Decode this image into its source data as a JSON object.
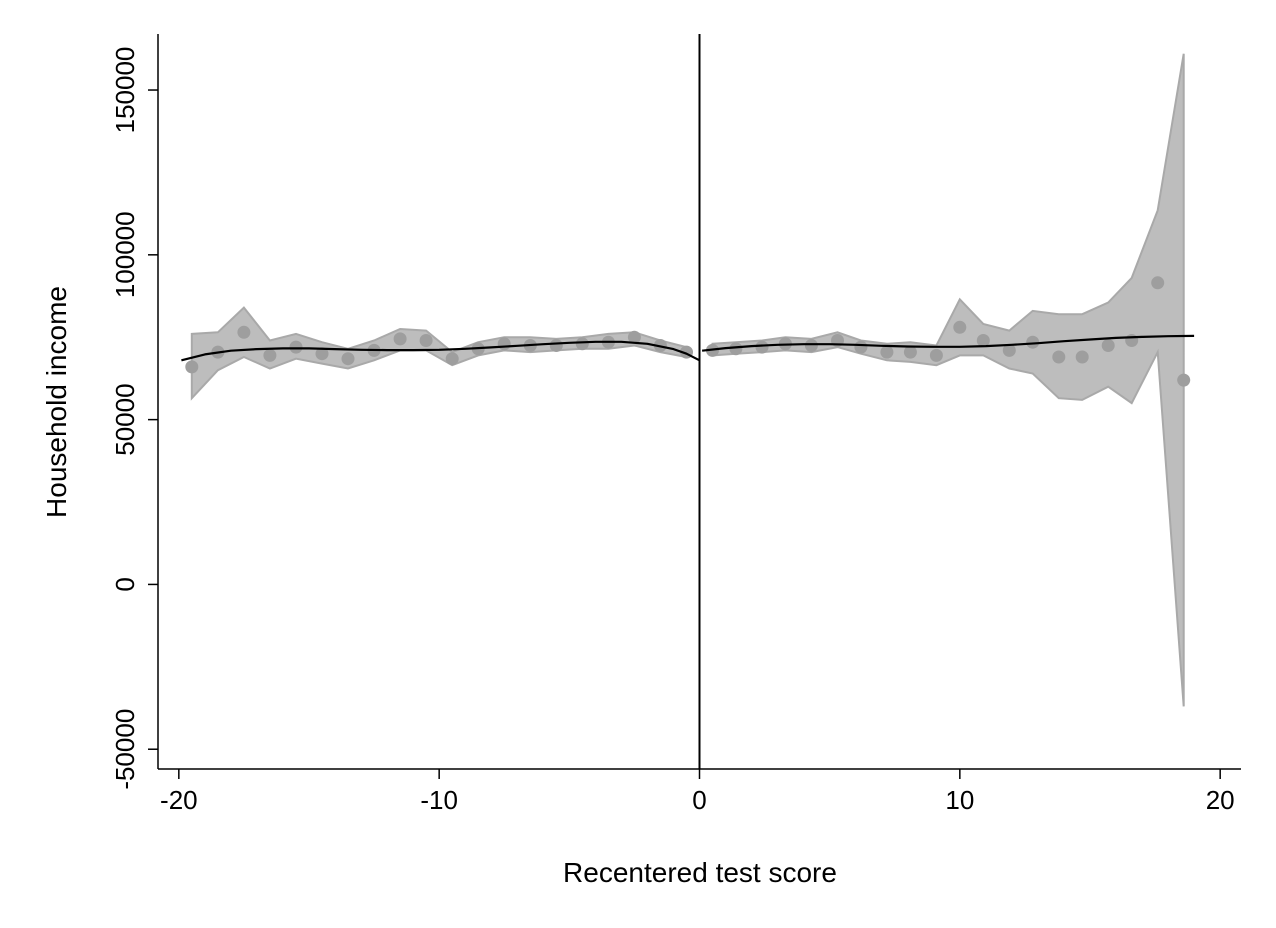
{
  "chart_data": {
    "type": "scatter",
    "xlabel": "Recentered test score",
    "ylabel": "Household income",
    "xlim": [
      -20.8,
      20.8
    ],
    "ylim": [
      -56000,
      167000
    ],
    "xticks": [
      -20,
      -10,
      0,
      10,
      20
    ],
    "yticks": [
      -50000,
      0,
      50000,
      100000,
      150000
    ],
    "xtick_labels": [
      "-20",
      "-10",
      "0",
      "10",
      "20"
    ],
    "ytick_labels": [
      "-50000",
      "0",
      "50000",
      "100000",
      "150000"
    ],
    "cutoff": 0,
    "grid": false,
    "legend": "none",
    "colors": {
      "band": "#bdbdbd",
      "band_edge": "#a9a9a9",
      "points": "#9e9e9e",
      "fit": "#000000",
      "axis": "#000000"
    },
    "points": [
      {
        "x": -19.5,
        "y": 66000
      },
      {
        "x": -18.5,
        "y": 70500
      },
      {
        "x": -17.5,
        "y": 76500
      },
      {
        "x": -16.5,
        "y": 69500
      },
      {
        "x": -15.5,
        "y": 72000
      },
      {
        "x": -14.5,
        "y": 70000
      },
      {
        "x": -13.5,
        "y": 68500
      },
      {
        "x": -12.5,
        "y": 71000
      },
      {
        "x": -11.5,
        "y": 74500
      },
      {
        "x": -10.5,
        "y": 74000
      },
      {
        "x": -9.5,
        "y": 68500
      },
      {
        "x": -8.5,
        "y": 71500
      },
      {
        "x": -7.5,
        "y": 73000
      },
      {
        "x": -6.5,
        "y": 72500
      },
      {
        "x": -5.5,
        "y": 72500
      },
      {
        "x": -4.5,
        "y": 73000
      },
      {
        "x": -3.5,
        "y": 73500
      },
      {
        "x": -2.5,
        "y": 75000
      },
      {
        "x": -1.5,
        "y": 72500
      },
      {
        "x": -0.5,
        "y": 70500
      },
      {
        "x": 0.5,
        "y": 71000
      },
      {
        "x": 1.4,
        "y": 71500
      },
      {
        "x": 2.4,
        "y": 72000
      },
      {
        "x": 3.3,
        "y": 73000
      },
      {
        "x": 4.3,
        "y": 72500
      },
      {
        "x": 5.3,
        "y": 74000
      },
      {
        "x": 6.2,
        "y": 72000
      },
      {
        "x": 7.2,
        "y": 70500
      },
      {
        "x": 8.1,
        "y": 70500
      },
      {
        "x": 9.1,
        "y": 69500
      },
      {
        "x": 10.0,
        "y": 78000
      },
      {
        "x": 10.9,
        "y": 74000
      },
      {
        "x": 11.9,
        "y": 71000
      },
      {
        "x": 12.8,
        "y": 73500
      },
      {
        "x": 13.8,
        "y": 69000
      },
      {
        "x": 14.7,
        "y": 69000
      },
      {
        "x": 15.7,
        "y": 72500
      },
      {
        "x": 16.6,
        "y": 74000
      },
      {
        "x": 17.6,
        "y": 91500
      },
      {
        "x": 18.6,
        "y": 62000
      }
    ],
    "ci_band_left": [
      {
        "x": -19.5,
        "lo": 56500,
        "hi": 76000
      },
      {
        "x": -18.5,
        "lo": 65000,
        "hi": 76500
      },
      {
        "x": -17.5,
        "lo": 69000,
        "hi": 84000
      },
      {
        "x": -16.5,
        "lo": 65500,
        "hi": 74000
      },
      {
        "x": -15.5,
        "lo": 68500,
        "hi": 76000
      },
      {
        "x": -14.5,
        "lo": 67000,
        "hi": 73500
      },
      {
        "x": -13.5,
        "lo": 65500,
        "hi": 71500
      },
      {
        "x": -12.5,
        "lo": 68000,
        "hi": 74000
      },
      {
        "x": -11.5,
        "lo": 71000,
        "hi": 77500
      },
      {
        "x": -10.5,
        "lo": 71000,
        "hi": 77000
      },
      {
        "x": -9.5,
        "lo": 66500,
        "hi": 70500
      },
      {
        "x": -8.5,
        "lo": 69500,
        "hi": 73500
      },
      {
        "x": -7.5,
        "lo": 71000,
        "hi": 75000
      },
      {
        "x": -6.5,
        "lo": 70500,
        "hi": 75000
      },
      {
        "x": -5.5,
        "lo": 71000,
        "hi": 74500
      },
      {
        "x": -4.5,
        "lo": 71500,
        "hi": 75000
      },
      {
        "x": -3.5,
        "lo": 71500,
        "hi": 76000
      },
      {
        "x": -2.5,
        "lo": 72500,
        "hi": 76500
      },
      {
        "x": -1.5,
        "lo": 70500,
        "hi": 74000
      },
      {
        "x": -0.5,
        "lo": 69000,
        "hi": 72000
      }
    ],
    "ci_band_right": [
      {
        "x": 0.5,
        "lo": 69500,
        "hi": 73000
      },
      {
        "x": 1.4,
        "lo": 70000,
        "hi": 73500
      },
      {
        "x": 2.4,
        "lo": 70500,
        "hi": 74000
      },
      {
        "x": 3.3,
        "lo": 71000,
        "hi": 75000
      },
      {
        "x": 4.3,
        "lo": 70500,
        "hi": 74500
      },
      {
        "x": 5.3,
        "lo": 72000,
        "hi": 76500
      },
      {
        "x": 6.2,
        "lo": 70000,
        "hi": 74000
      },
      {
        "x": 7.2,
        "lo": 68000,
        "hi": 73000
      },
      {
        "x": 8.1,
        "lo": 67500,
        "hi": 73500
      },
      {
        "x": 9.1,
        "lo": 66500,
        "hi": 72500
      },
      {
        "x": 10.0,
        "lo": 69500,
        "hi": 86500
      },
      {
        "x": 10.9,
        "lo": 69500,
        "hi": 79000
      },
      {
        "x": 11.9,
        "lo": 65500,
        "hi": 77000
      },
      {
        "x": 12.8,
        "lo": 64000,
        "hi": 83000
      },
      {
        "x": 13.8,
        "lo": 56500,
        "hi": 82000
      },
      {
        "x": 14.7,
        "lo": 56000,
        "hi": 82000
      },
      {
        "x": 15.7,
        "lo": 60000,
        "hi": 85500
      },
      {
        "x": 16.6,
        "lo": 55000,
        "hi": 93000
      },
      {
        "x": 17.6,
        "lo": 70500,
        "hi": 113500
      },
      {
        "x": 18.6,
        "lo": -37000,
        "hi": 161000
      }
    ],
    "fit_left": [
      {
        "x": -19.9,
        "y": 68000
      },
      {
        "x": -19.0,
        "y": 69800
      },
      {
        "x": -18.0,
        "y": 70900
      },
      {
        "x": -17.0,
        "y": 71400
      },
      {
        "x": -16.0,
        "y": 71600
      },
      {
        "x": -15.0,
        "y": 71600
      },
      {
        "x": -14.0,
        "y": 71400
      },
      {
        "x": -13.0,
        "y": 71200
      },
      {
        "x": -12.0,
        "y": 71100
      },
      {
        "x": -11.0,
        "y": 71100
      },
      {
        "x": -10.0,
        "y": 71200
      },
      {
        "x": -9.0,
        "y": 71500
      },
      {
        "x": -8.0,
        "y": 71900
      },
      {
        "x": -7.0,
        "y": 72400
      },
      {
        "x": -6.0,
        "y": 72900
      },
      {
        "x": -5.0,
        "y": 73300
      },
      {
        "x": -4.0,
        "y": 73600
      },
      {
        "x": -3.0,
        "y": 73600
      },
      {
        "x": -2.0,
        "y": 73000
      },
      {
        "x": -1.0,
        "y": 71400
      },
      {
        "x": -0.5,
        "y": 70000
      },
      {
        "x": 0.0,
        "y": 68000
      }
    ],
    "fit_right": [
      {
        "x": 0.1,
        "y": 70900
      },
      {
        "x": 1.0,
        "y": 71700
      },
      {
        "x": 2.0,
        "y": 72300
      },
      {
        "x": 3.0,
        "y": 72700
      },
      {
        "x": 4.0,
        "y": 72900
      },
      {
        "x": 5.0,
        "y": 72900
      },
      {
        "x": 6.0,
        "y": 72700
      },
      {
        "x": 7.0,
        "y": 72400
      },
      {
        "x": 8.0,
        "y": 72200
      },
      {
        "x": 9.0,
        "y": 72100
      },
      {
        "x": 10.0,
        "y": 72100
      },
      {
        "x": 11.0,
        "y": 72300
      },
      {
        "x": 12.0,
        "y": 72700
      },
      {
        "x": 13.0,
        "y": 73200
      },
      {
        "x": 14.0,
        "y": 73800
      },
      {
        "x": 15.0,
        "y": 74300
      },
      {
        "x": 16.0,
        "y": 74800
      },
      {
        "x": 17.0,
        "y": 75100
      },
      {
        "x": 18.0,
        "y": 75300
      },
      {
        "x": 19.0,
        "y": 75400
      }
    ]
  }
}
